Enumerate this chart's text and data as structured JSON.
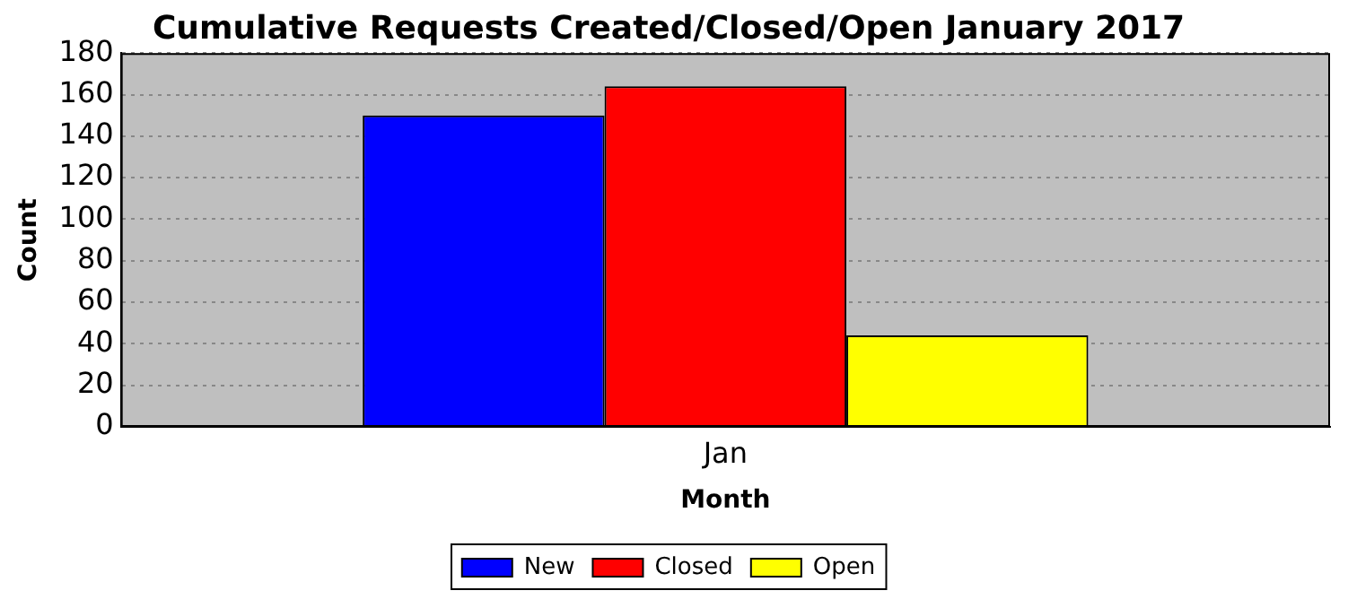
{
  "chart_data": {
    "type": "bar",
    "title": "Cumulative Requests Created/Closed/Open January 2017",
    "xlabel": "Month",
    "ylabel": "Count",
    "categories": [
      "Jan"
    ],
    "series": [
      {
        "name": "New",
        "color": "#0000ff",
        "values": [
          150
        ]
      },
      {
        "name": "Closed",
        "color": "#ff0000",
        "values": [
          164
        ]
      },
      {
        "name": "Open",
        "color": "#ffff00",
        "values": [
          44
        ]
      }
    ],
    "ylim": [
      0,
      180
    ],
    "yticks": [
      0,
      20,
      40,
      60,
      80,
      100,
      120,
      140,
      160,
      180
    ],
    "grid": "y",
    "legend": "bottom"
  }
}
